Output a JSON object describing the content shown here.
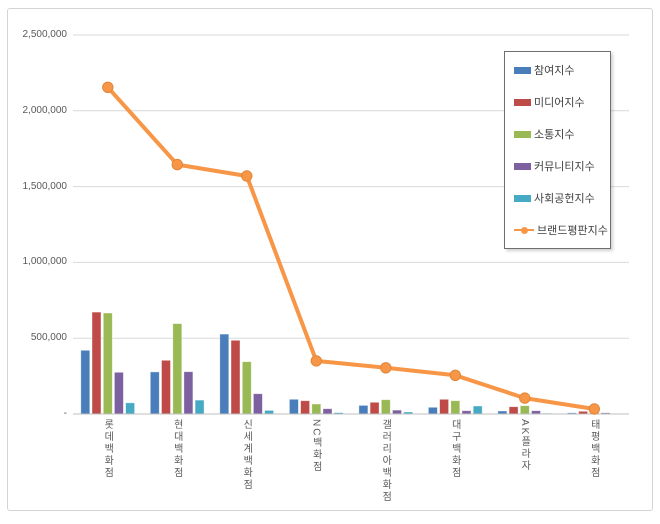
{
  "chart_data": {
    "type": "bar+line",
    "title": "",
    "xlabel": "",
    "ylabel": "",
    "ylim": [
      0,
      2500000
    ],
    "grid": true,
    "legend_position": "top-right-inside",
    "y_ticks": [
      {
        "value": 0,
        "label": "-"
      },
      {
        "value": 500000,
        "label": "500,000"
      },
      {
        "value": 1000000,
        "label": "1,000,000"
      },
      {
        "value": 1500000,
        "label": "1,500,000"
      },
      {
        "value": 2000000,
        "label": "2,000,000"
      },
      {
        "value": 2500000,
        "label": "2,500,000"
      }
    ],
    "categories": [
      "롯데백화점",
      "현대백화점",
      "신세계백화점",
      "NC백화점",
      "갤러리아백화점",
      "대구백화점",
      "AK플라자",
      "태평백화점"
    ],
    "series": [
      {
        "name": "참여지수",
        "type": "bar",
        "color": "#4a7ebb",
        "values": [
          420000,
          278000,
          527000,
          97000,
          57000,
          44000,
          20000,
          8000
        ]
      },
      {
        "name": "미디어지수",
        "type": "bar",
        "color": "#be4b48",
        "values": [
          672000,
          354000,
          486000,
          88000,
          77000,
          97000,
          48000,
          18000
        ]
      },
      {
        "name": "소통지수",
        "type": "bar",
        "color": "#98b954",
        "values": [
          666000,
          596000,
          345000,
          66000,
          94000,
          88000,
          55000,
          10000
        ]
      },
      {
        "name": "커뮤니티지수",
        "type": "bar",
        "color": "#7d60a0",
        "values": [
          275000,
          279000,
          134000,
          35000,
          26000,
          22000,
          22000,
          8000
        ]
      },
      {
        "name": "사회공헌지수",
        "type": "bar",
        "color": "#46aac5",
        "values": [
          74000,
          92000,
          24000,
          9000,
          13000,
          53000,
          5000,
          3000
        ]
      },
      {
        "name": "브랜드평판지수",
        "type": "line",
        "color": "#f79646",
        "values": [
          2155000,
          1645000,
          1570000,
          350000,
          305000,
          255000,
          105000,
          33000
        ]
      }
    ],
    "colors": {
      "gridline": "#d9d9d9",
      "axis_line": "#bfbfbf",
      "tick_text": "#595959",
      "legend_border": "#6f6f6f",
      "line_marker_edge": "#e0863b",
      "frame_border": "#d4d4d4"
    }
  }
}
